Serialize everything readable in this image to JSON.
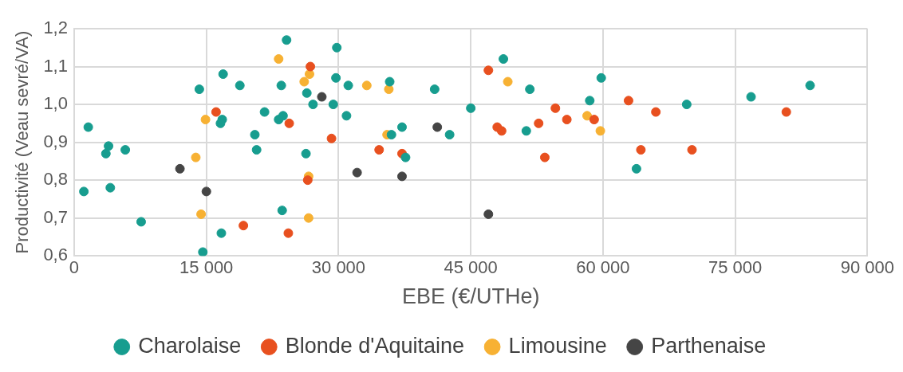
{
  "chart_data": {
    "type": "scatter",
    "xlabel": "EBE (€/UTHe)",
    "ylabel": "Productivité (Veau sevré/VA)",
    "xlim": [
      0,
      90000
    ],
    "xticks": [
      {
        "value": 0,
        "label": "0"
      },
      {
        "value": 15000,
        "label": "15 000"
      },
      {
        "value": 30000,
        "label": "30 000"
      },
      {
        "value": 45000,
        "label": "45 000"
      },
      {
        "value": 60000,
        "label": "60 000"
      },
      {
        "value": 75000,
        "label": "75 000"
      },
      {
        "value": 90000,
        "label": "90 000"
      }
    ],
    "ylim": [
      0.6,
      1.2
    ],
    "yticks": [
      {
        "value": 0.6,
        "label": "0,6"
      },
      {
        "value": 0.7,
        "label": "0,7"
      },
      {
        "value": 0.8,
        "label": "0,8"
      },
      {
        "value": 0.9,
        "label": "0,9"
      },
      {
        "value": 1.0,
        "label": "1,0"
      },
      {
        "value": 1.1,
        "label": "1,1"
      },
      {
        "value": 1.2,
        "label": "1,2"
      }
    ],
    "grid": true,
    "legend": "bottom",
    "marker": "circle",
    "series": [
      {
        "name": "Charolaise",
        "color": "#179d8f",
        "x": [
          1600,
          3900,
          3600,
          5800,
          1100,
          4100,
          7600,
          14200,
          16900,
          18800,
          16800,
          16600,
          14600,
          16700,
          24100,
          23500,
          21600,
          23700,
          23200,
          20500,
          20700,
          26400,
          27100,
          26300,
          23600,
          29800,
          29700,
          29400,
          31100,
          30900,
          35800,
          36000,
          37200,
          37600,
          40900,
          42600,
          45000,
          48700,
          51700,
          51300,
          58500,
          59800,
          69500,
          63800,
          76800,
          83500
        ],
        "values": [
          0.94,
          0.89,
          0.87,
          0.88,
          0.77,
          0.78,
          0.69,
          1.04,
          1.08,
          1.05,
          0.96,
          0.95,
          0.61,
          0.66,
          1.17,
          1.05,
          0.98,
          0.97,
          0.96,
          0.92,
          0.88,
          1.03,
          1.0,
          0.87,
          0.72,
          1.15,
          1.07,
          1.0,
          1.05,
          0.97,
          1.06,
          0.92,
          0.94,
          0.86,
          1.04,
          0.92,
          0.99,
          1.12,
          1.04,
          0.93,
          1.01,
          1.07,
          1.0,
          0.83,
          1.02,
          1.05
        ]
      },
      {
        "name": "Blonde d'Aquitaine",
        "color": "#e8501f",
        "x": [
          16100,
          24400,
          26800,
          29200,
          26500,
          19200,
          24300,
          34600,
          37200,
          47000,
          48000,
          48500,
          52700,
          53400,
          54600,
          55900,
          59000,
          62900,
          66000,
          64300,
          70100,
          80800
        ],
        "values": [
          0.98,
          0.95,
          1.1,
          0.91,
          0.8,
          0.68,
          0.66,
          0.88,
          0.87,
          1.09,
          0.94,
          0.93,
          0.95,
          0.86,
          0.99,
          0.96,
          0.96,
          1.01,
          0.98,
          0.88,
          0.88,
          0.98
        ]
      },
      {
        "name": "Limousine",
        "color": "#f7b133",
        "x": [
          23200,
          26700,
          26100,
          14900,
          13800,
          26600,
          14400,
          26600,
          33200,
          35700,
          35500,
          49200,
          58200,
          59700
        ],
        "values": [
          1.12,
          1.08,
          1.06,
          0.96,
          0.86,
          0.81,
          0.71,
          0.7,
          1.05,
          1.04,
          0.92,
          1.06,
          0.97,
          0.93
        ]
      },
      {
        "name": "Parthenaise",
        "color": "#454545",
        "x": [
          28100,
          12000,
          15000,
          32100,
          37200,
          41200,
          47000
        ],
        "values": [
          1.02,
          0.83,
          0.77,
          0.82,
          0.81,
          0.94,
          0.71
        ]
      }
    ]
  }
}
